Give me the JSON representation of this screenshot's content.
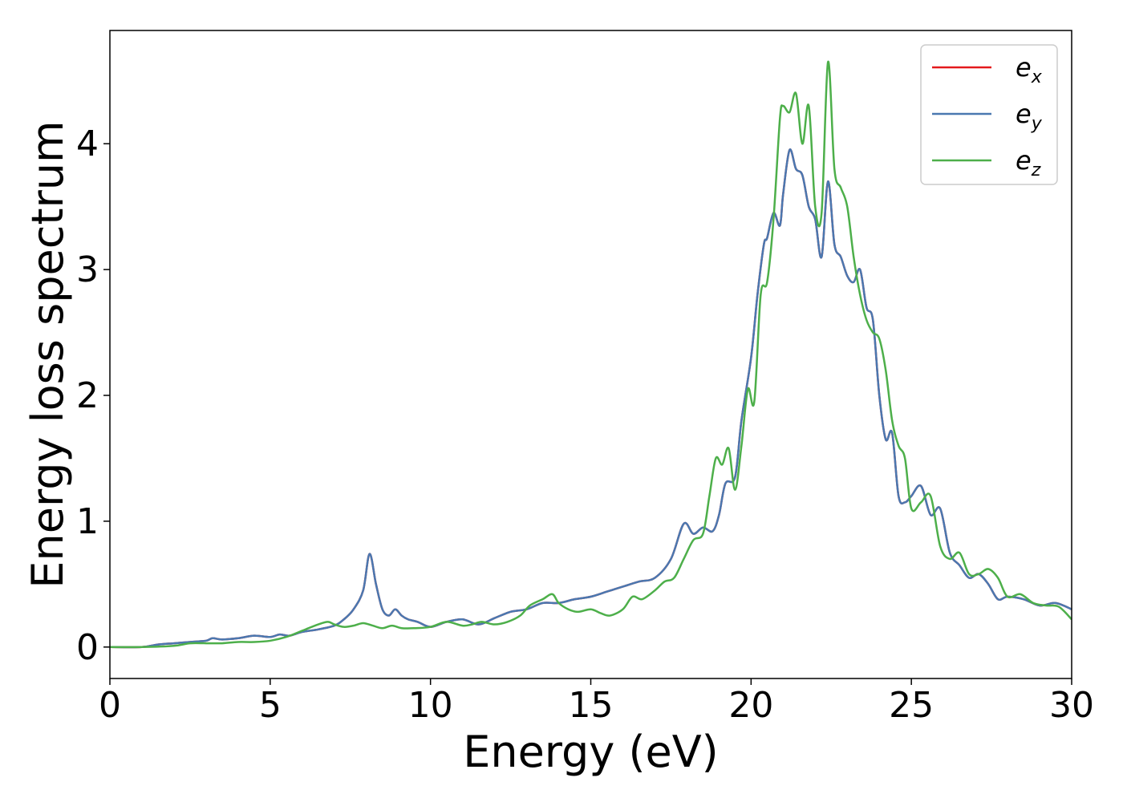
{
  "chart_data": {
    "type": "line",
    "title": "",
    "xlabel": "Energy (eV)",
    "ylabel": "Energy loss spectrum",
    "xlim": [
      0,
      30
    ],
    "ylim": [
      -0.25,
      4.9
    ],
    "xticks": [
      0,
      5,
      10,
      15,
      20,
      25,
      30
    ],
    "yticks": [
      0,
      1,
      2,
      3,
      4
    ],
    "xtick_labels": [
      "0",
      "5",
      "10",
      "15",
      "20",
      "25",
      "30"
    ],
    "ytick_labels": [
      "0",
      "1",
      "2",
      "3",
      "4"
    ],
    "grid": false,
    "legend_position": "top-right",
    "series": [
      {
        "name": "e_x",
        "legend_base": "e",
        "legend_sub": "x",
        "color": "#e41a1c",
        "x": [
          0,
          1,
          1.5,
          2,
          2.5,
          3,
          3.2,
          3.5,
          4,
          4.5,
          5,
          5.3,
          5.6,
          6,
          6.5,
          7,
          7.3,
          7.6,
          7.9,
          8.1,
          8.3,
          8.5,
          8.7,
          8.9,
          9.1,
          9.3,
          9.6,
          10,
          10.5,
          11,
          11.5,
          12,
          12.5,
          13,
          13.5,
          14,
          14.5,
          15,
          15.5,
          16,
          16.5,
          17,
          17.5,
          17.9,
          18.2,
          18.5,
          18.8,
          19,
          19.2,
          19.5,
          19.7,
          20,
          20.2,
          20.4,
          20.5,
          20.7,
          20.9,
          21.0,
          21.2,
          21.4,
          21.6,
          21.8,
          22.0,
          22.2,
          22.4,
          22.6,
          22.8,
          23.0,
          23.2,
          23.4,
          23.6,
          23.8,
          24.0,
          24.2,
          24.4,
          24.6,
          24.8,
          25.0,
          25.3,
          25.6,
          25.9,
          26.2,
          26.5,
          26.8,
          27.1,
          27.4,
          27.7,
          28.0,
          28.5,
          29.0,
          29.5,
          30
        ],
        "y": [
          0,
          0,
          0.02,
          0.03,
          0.04,
          0.05,
          0.07,
          0.06,
          0.07,
          0.09,
          0.08,
          0.1,
          0.09,
          0.12,
          0.14,
          0.17,
          0.22,
          0.3,
          0.45,
          0.74,
          0.5,
          0.3,
          0.25,
          0.3,
          0.25,
          0.22,
          0.2,
          0.16,
          0.2,
          0.22,
          0.18,
          0.23,
          0.28,
          0.3,
          0.35,
          0.35,
          0.38,
          0.4,
          0.44,
          0.48,
          0.52,
          0.55,
          0.7,
          0.98,
          0.9,
          0.95,
          0.92,
          1.05,
          1.3,
          1.35,
          1.8,
          2.3,
          2.8,
          3.2,
          3.25,
          3.45,
          3.35,
          3.6,
          3.95,
          3.8,
          3.75,
          3.5,
          3.4,
          3.1,
          3.7,
          3.2,
          3.1,
          2.95,
          2.9,
          3.0,
          2.7,
          2.6,
          2.0,
          1.65,
          1.7,
          1.2,
          1.15,
          1.2,
          1.28,
          1.05,
          1.1,
          0.75,
          0.65,
          0.55,
          0.58,
          0.5,
          0.38,
          0.4,
          0.38,
          0.33,
          0.35,
          0.3
        ]
      },
      {
        "name": "e_y",
        "legend_base": "e",
        "legend_sub": "y",
        "color": "#4a78b0",
        "x": [
          0,
          1,
          1.5,
          2,
          2.5,
          3,
          3.2,
          3.5,
          4,
          4.5,
          5,
          5.3,
          5.6,
          6,
          6.5,
          7,
          7.3,
          7.6,
          7.9,
          8.1,
          8.3,
          8.5,
          8.7,
          8.9,
          9.1,
          9.3,
          9.6,
          10,
          10.5,
          11,
          11.5,
          12,
          12.5,
          13,
          13.5,
          14,
          14.5,
          15,
          15.5,
          16,
          16.5,
          17,
          17.5,
          17.9,
          18.2,
          18.5,
          18.8,
          19,
          19.2,
          19.5,
          19.7,
          20,
          20.2,
          20.4,
          20.5,
          20.7,
          20.9,
          21.0,
          21.2,
          21.4,
          21.6,
          21.8,
          22.0,
          22.2,
          22.4,
          22.6,
          22.8,
          23.0,
          23.2,
          23.4,
          23.6,
          23.8,
          24.0,
          24.2,
          24.4,
          24.6,
          24.8,
          25.0,
          25.3,
          25.6,
          25.9,
          26.2,
          26.5,
          26.8,
          27.1,
          27.4,
          27.7,
          28.0,
          28.5,
          29.0,
          29.5,
          30
        ],
        "y": [
          0,
          0,
          0.02,
          0.03,
          0.04,
          0.05,
          0.07,
          0.06,
          0.07,
          0.09,
          0.08,
          0.1,
          0.09,
          0.12,
          0.14,
          0.17,
          0.22,
          0.3,
          0.45,
          0.74,
          0.5,
          0.3,
          0.25,
          0.3,
          0.25,
          0.22,
          0.2,
          0.16,
          0.2,
          0.22,
          0.18,
          0.23,
          0.28,
          0.3,
          0.35,
          0.35,
          0.38,
          0.4,
          0.44,
          0.48,
          0.52,
          0.55,
          0.7,
          0.98,
          0.9,
          0.95,
          0.92,
          1.05,
          1.3,
          1.35,
          1.8,
          2.3,
          2.8,
          3.2,
          3.25,
          3.45,
          3.35,
          3.6,
          3.95,
          3.8,
          3.75,
          3.5,
          3.4,
          3.1,
          3.7,
          3.2,
          3.1,
          2.95,
          2.9,
          3.0,
          2.7,
          2.6,
          2.0,
          1.65,
          1.7,
          1.2,
          1.15,
          1.2,
          1.28,
          1.05,
          1.1,
          0.75,
          0.65,
          0.55,
          0.58,
          0.5,
          0.38,
          0.4,
          0.38,
          0.33,
          0.35,
          0.3
        ]
      },
      {
        "name": "e_z",
        "legend_base": "e",
        "legend_sub": "z",
        "color": "#4daf4a",
        "x": [
          0,
          1,
          2,
          2.5,
          3,
          3.5,
          4,
          4.5,
          5,
          5.5,
          6,
          6.5,
          6.8,
          7,
          7.3,
          7.6,
          7.9,
          8.2,
          8.5,
          8.8,
          9.1,
          9.5,
          10,
          10.5,
          11,
          11.3,
          11.6,
          12,
          12.4,
          12.8,
          13.1,
          13.5,
          13.8,
          14,
          14.3,
          14.6,
          15,
          15.3,
          15.6,
          16,
          16.3,
          16.6,
          17,
          17.3,
          17.6,
          17.9,
          18.2,
          18.5,
          18.7,
          18.9,
          19.1,
          19.3,
          19.5,
          19.7,
          19.9,
          20.1,
          20.3,
          20.5,
          20.7,
          20.9,
          21.0,
          21.2,
          21.4,
          21.6,
          21.8,
          22.0,
          22.2,
          22.4,
          22.6,
          22.8,
          23.0,
          23.2,
          23.4,
          23.6,
          23.8,
          24.0,
          24.2,
          24.4,
          24.6,
          24.8,
          25.0,
          25.3,
          25.6,
          25.9,
          26.2,
          26.5,
          26.8,
          27.1,
          27.4,
          27.7,
          28.0,
          28.4,
          28.8,
          29.2,
          29.6,
          30
        ],
        "y": [
          0,
          0,
          0.01,
          0.03,
          0.03,
          0.03,
          0.04,
          0.04,
          0.05,
          0.08,
          0.13,
          0.18,
          0.2,
          0.18,
          0.16,
          0.17,
          0.19,
          0.17,
          0.15,
          0.17,
          0.15,
          0.15,
          0.16,
          0.2,
          0.17,
          0.18,
          0.2,
          0.18,
          0.2,
          0.25,
          0.33,
          0.38,
          0.42,
          0.35,
          0.3,
          0.28,
          0.3,
          0.27,
          0.25,
          0.3,
          0.4,
          0.38,
          0.45,
          0.52,
          0.55,
          0.7,
          0.85,
          0.9,
          1.2,
          1.5,
          1.45,
          1.58,
          1.25,
          1.6,
          2.05,
          1.95,
          2.8,
          2.9,
          3.4,
          4.2,
          4.3,
          4.25,
          4.4,
          4.0,
          4.3,
          3.5,
          3.45,
          4.65,
          3.8,
          3.65,
          3.5,
          3.1,
          2.8,
          2.6,
          2.5,
          2.45,
          2.2,
          1.8,
          1.6,
          1.5,
          1.1,
          1.15,
          1.2,
          0.8,
          0.7,
          0.75,
          0.58,
          0.58,
          0.62,
          0.55,
          0.4,
          0.42,
          0.35,
          0.33,
          0.32,
          0.22
        ]
      }
    ]
  }
}
